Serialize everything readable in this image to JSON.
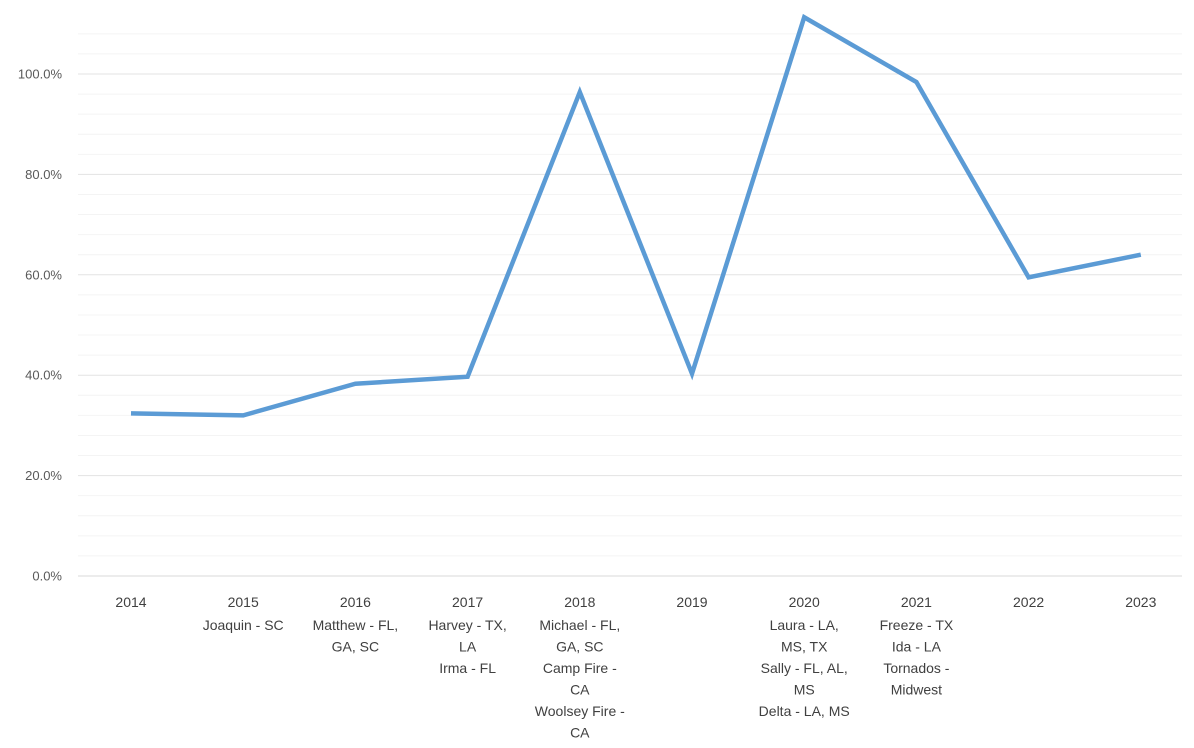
{
  "chart_data": {
    "type": "line",
    "title": "",
    "xlabel": "",
    "ylabel": "",
    "ylim": [
      0,
      110
    ],
    "ytick_values": [
      0,
      20,
      40,
      60,
      80,
      100
    ],
    "ytick_labels": [
      "0.0%",
      "20.0%",
      "40.0%",
      "60.0%",
      "80.0%",
      "100.0%"
    ],
    "grid": "horizontal",
    "minor_grid": true,
    "line_color": "#5b9bd5",
    "categories": [
      "2014",
      "2015",
      "2016",
      "2017",
      "2018",
      "2019",
      "2020",
      "2021",
      "2022",
      "2023"
    ],
    "category_notes": [
      [],
      [
        "Joaquin - SC"
      ],
      [
        "Matthew - FL,",
        "GA, SC"
      ],
      [
        "Harvey - TX,",
        "LA",
        "Irma - FL"
      ],
      [
        "Michael - FL,",
        "GA, SC",
        "Camp Fire -",
        "CA",
        "Woolsey Fire -",
        "CA"
      ],
      [],
      [
        "Laura - LA,",
        "MS, TX",
        "Sally - FL, AL,",
        "MS",
        "Delta - LA, MS"
      ],
      [
        "Freeze - TX",
        "Ida - LA",
        "Tornados -",
        "Midwest"
      ],
      [],
      []
    ],
    "series": [
      {
        "values": [
          32.4,
          32.0,
          38.3,
          39.7,
          96.4,
          40.3,
          111.3,
          98.4,
          59.5,
          64.0
        ]
      }
    ]
  }
}
